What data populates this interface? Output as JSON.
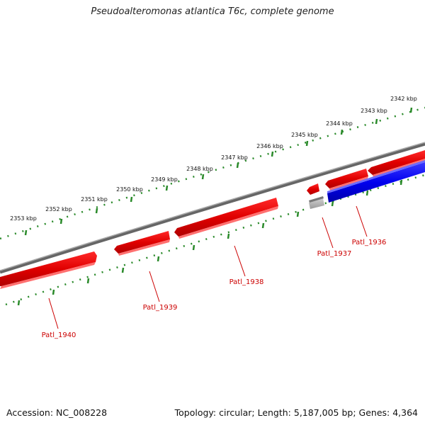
{
  "title": "Pseudoalteromonas atlantica T6c, complete genome",
  "ticks": [
    "2342 kbp",
    "2343 kbp",
    "2344 kbp",
    "2345 kbp",
    "2346 kbp",
    "2347 kbp",
    "2348 kbp",
    "2349 kbp",
    "2350 kbp",
    "2351 kbp",
    "2352 kbp",
    "2353 kbp"
  ],
  "genes": [
    {
      "label": "Patl_1936",
      "color": "#0000ff",
      "strand": "reverse"
    },
    {
      "label": "Patl_1937",
      "color": "#aaaaaa",
      "strand": "reverse"
    },
    {
      "label": "Patl_1938",
      "color": "#ff0000",
      "strand": "forward"
    },
    {
      "label": "Patl_1939",
      "color": "#ff0000",
      "strand": "forward"
    },
    {
      "label": "Patl_1940",
      "color": "#ff0000",
      "strand": "forward"
    }
  ],
  "footer": {
    "accession": "Accession: NC_008228",
    "info": "Topology: circular; Length: 5,187,005 bp; Genes: 4,364"
  },
  "colors": {
    "backbone": "#7f7f7f",
    "tick_marks": "#228b22",
    "label_text": "#cc0000",
    "forward_gene": "#ff0000",
    "reverse_gene": "#0000ff",
    "other_gene": "#aaaaaa"
  }
}
